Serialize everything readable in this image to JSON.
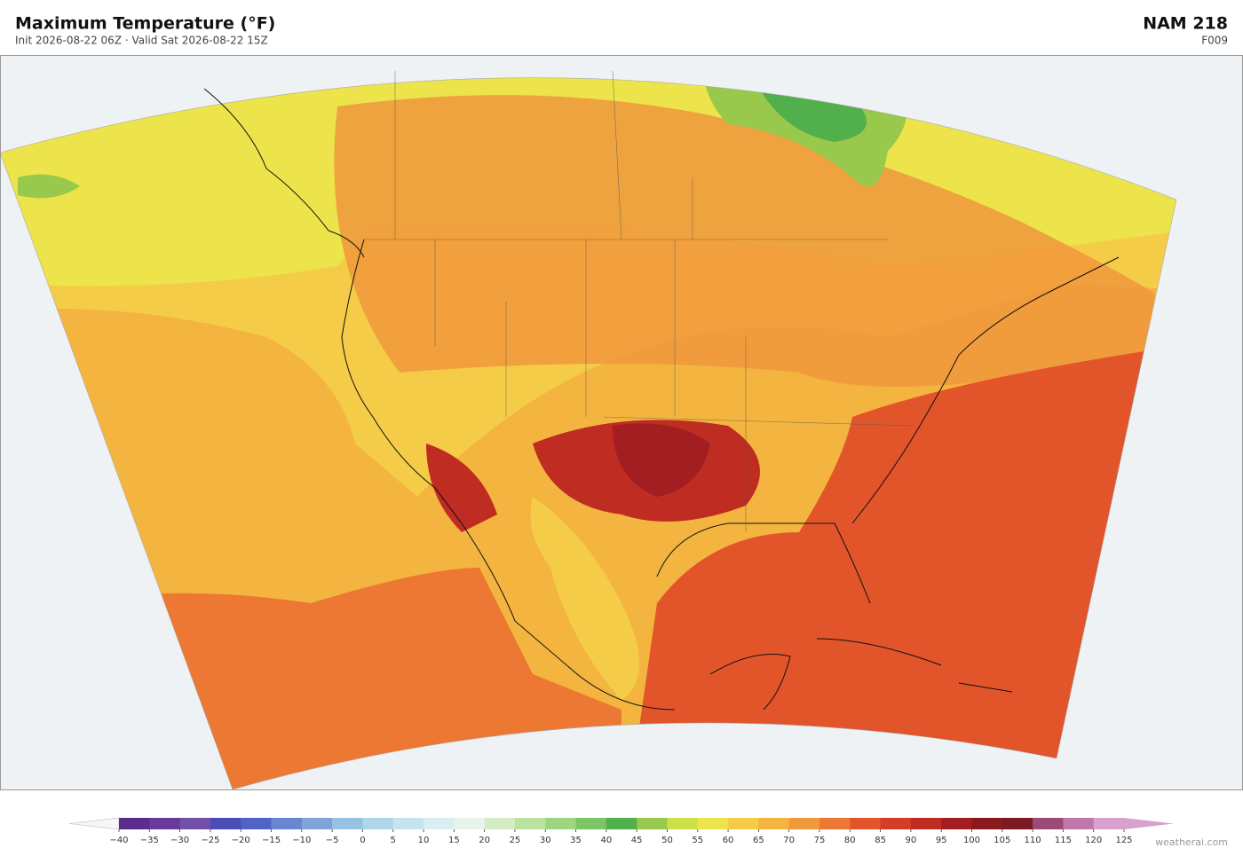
{
  "header": {
    "title": "Maximum Temperature  (°F)",
    "subtitle": "Init 2026-08-22 06Z  ·  Valid Sat 2026-08-22 15Z",
    "model": "NAM  218",
    "forecast_hour": "F009"
  },
  "colorbar": {
    "ticks": [
      {
        "value": -40,
        "label": "−40"
      },
      {
        "value": -35,
        "label": "−35"
      },
      {
        "value": -30,
        "label": "−30"
      },
      {
        "value": -25,
        "label": "−25"
      },
      {
        "value": -20,
        "label": "−20"
      },
      {
        "value": -15,
        "label": "−15"
      },
      {
        "value": -10,
        "label": "−10"
      },
      {
        "value": -5,
        "label": "−5"
      },
      0,
      5,
      10,
      15,
      20,
      25,
      30,
      35,
      40,
      45,
      50,
      55,
      60,
      65,
      70,
      75,
      80,
      85,
      90,
      95,
      100,
      105,
      110,
      115,
      120,
      125
    ],
    "colors": [
      "#5a2d8c",
      "#6a3a9a",
      "#7250a8",
      "#4a4cb8",
      "#5064c8",
      "#6a86d0",
      "#80a4d8",
      "#98c2e2",
      "#b0d6ea",
      "#c6e4ef",
      "#daeef2",
      "#e8f4ea",
      "#d4ecc4",
      "#bce2a0",
      "#9ed680",
      "#7cc464",
      "#52b04c",
      "#98c84c",
      "#cde04a",
      "#ece44a",
      "#f4cc48",
      "#f4b440",
      "#f0983c",
      "#ec7834",
      "#e2552a",
      "#d23e26",
      "#be2c22",
      "#a21e20",
      "#8a1a1e",
      "#7a1a22",
      "#9c4a78",
      "#be78ac",
      "#d8a0cc"
    ],
    "under_color": "#f6f6f6",
    "over_color": "#d8a0cc"
  },
  "credit": "weatherai.com"
}
